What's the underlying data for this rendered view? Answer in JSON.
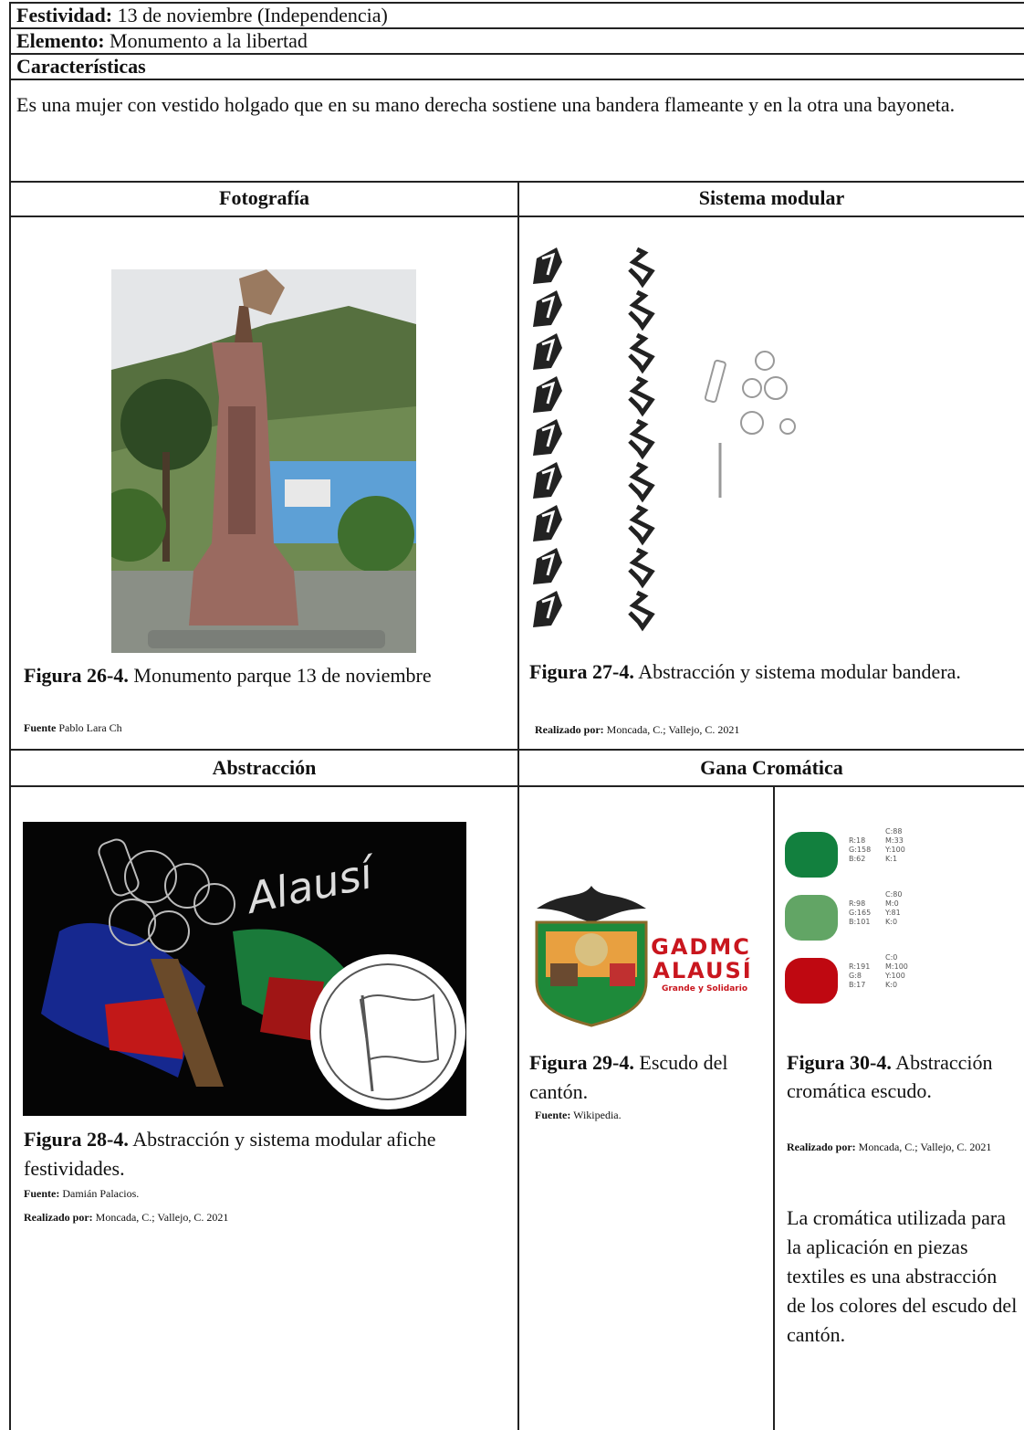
{
  "rows": {
    "festividad": {
      "label": "Festividad:",
      "value": "13 de noviembre (Independencia)"
    },
    "elemento": {
      "label": "Elemento:",
      "value": "Monumento a la libertad"
    },
    "caracteristicas": {
      "label": "Características",
      "value": "Es una mujer con vestido holgado que en su mano derecha sostiene una bandera flameante y en la otra una bayoneta."
    }
  },
  "fotografia": {
    "heading": "Fotografía",
    "caption": {
      "figure": "Figura 26-4.",
      "text": "Monumento parque 13 de noviembre"
    },
    "source": {
      "label": "Fuente",
      "value": "Pablo Lara Ch"
    }
  },
  "sistema_modular": {
    "heading": "Sistema modular",
    "caption": {
      "figure": "Figura 27-4.",
      "text": "Abstracción y sistema modular bandera."
    },
    "credit": {
      "label": "Realizado por:",
      "value": "Moncada, C.; Vallejo, C. 2021"
    }
  },
  "abstraccion": {
    "heading": "Abstracción",
    "image_text": "Alausí",
    "caption": {
      "figure": "Figura 28-4.",
      "text": "Abstracción y sistema modular afiche festividades."
    },
    "source": {
      "label": "Fuente:",
      "value": "Damián Palacios."
    },
    "credit": {
      "label": "Realizado por:",
      "value": "Moncada, C.; Vallejo, C. 2021"
    }
  },
  "gama_cromatica": {
    "heading": "Gana Cromática",
    "logo": {
      "line1": "GADMC",
      "line2": "ALAUSÍ",
      "tagline": "Grande y Solidario"
    },
    "escudo_caption": {
      "figure": "Figura 29-4.",
      "text": "Escudo del cantón."
    },
    "escudo_source": {
      "label": "Fuente:",
      "value": "Wikipedia."
    },
    "swatches": [
      {
        "rgb": [
          "R:18",
          "G:158",
          "B:62"
        ],
        "cmyk": [
          "C:88",
          "M:33",
          "Y:100",
          "K:1"
        ]
      },
      {
        "rgb": [
          "R:98",
          "G:165",
          "B:101"
        ],
        "cmyk": [
          "C:80",
          "M:0",
          "Y:81",
          "K:0"
        ]
      },
      {
        "rgb": [
          "R:191",
          "G:8",
          "B:17"
        ],
        "cmyk": [
          "C:0",
          "M:100",
          "Y:100",
          "K:0"
        ]
      }
    ],
    "palette_caption": {
      "figure": "Figura 30-4.",
      "text": "Abstracción cromática escudo."
    },
    "palette_credit": {
      "label": "Realizado por:",
      "value": "Moncada, C.; Vallejo, C. 2021"
    },
    "description": "La cromática utilizada para la aplicación en piezas textiles es una abstracción de los colores del escudo del cantón."
  }
}
